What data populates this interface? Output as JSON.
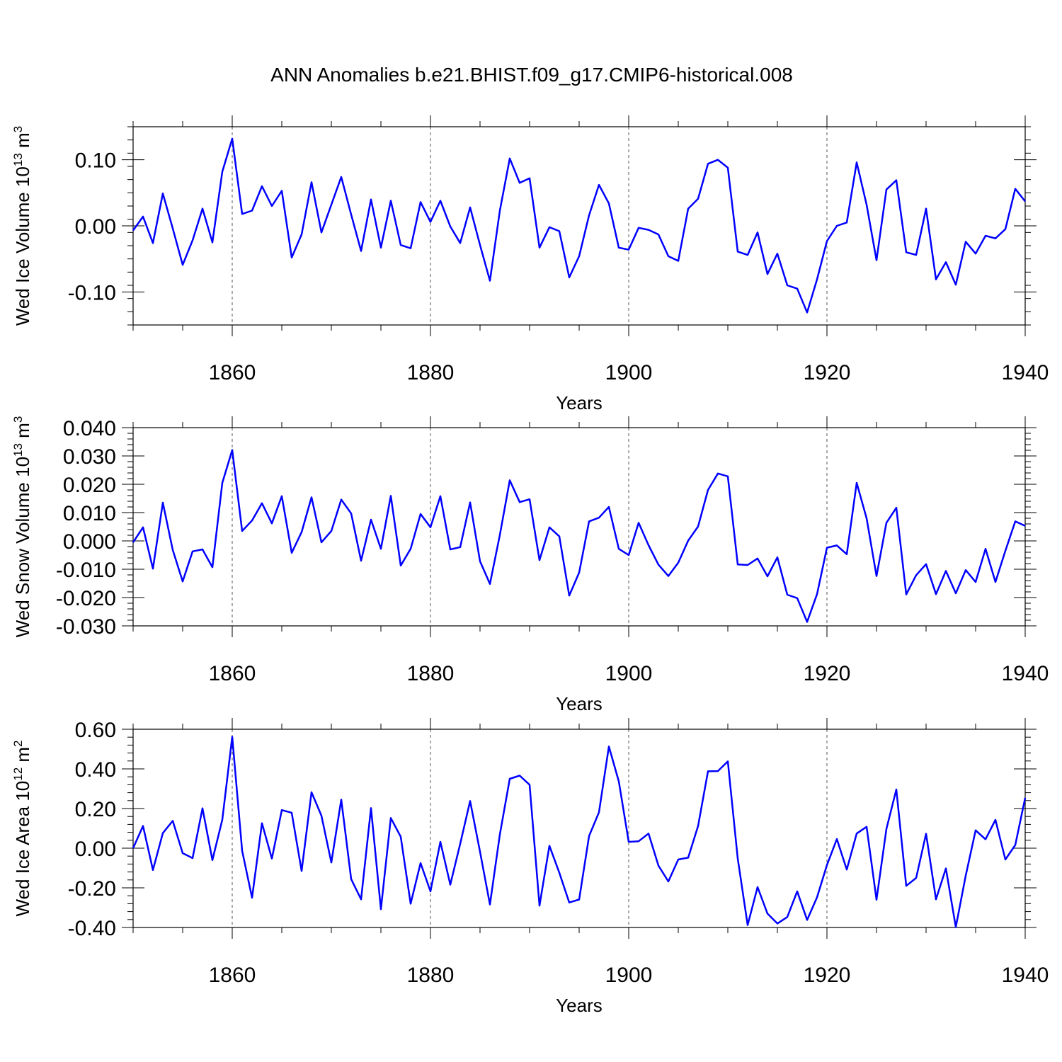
{
  "title": "ANN Anomalies b.e21.BHIST.f09_g17.CMIP6-historical.008",
  "colors": {
    "line": "#0000ff",
    "frame": "#000000",
    "grid": "#555555"
  },
  "chart_data": [
    {
      "type": "line",
      "ylabel_main": "Wed Ice Volume 10",
      "ylabel_sup": "13",
      "ylabel_unit": " m",
      "ylabel_unit_sup": "3",
      "xlabel": "Years",
      "xlim": [
        1850,
        1940
      ],
      "ylim": [
        -0.15,
        0.15
      ],
      "yticks": [
        -0.1,
        0.0,
        0.1
      ],
      "ytick_labels": [
        "-0.10",
        "0.00",
        "0.10"
      ],
      "yminor": 0.02,
      "xticks": [
        1860,
        1880,
        1900,
        1920,
        1940
      ],
      "xtick_labels": [
        "1860",
        "1880",
        "1900",
        "1920",
        "1940"
      ],
      "grid_x": true,
      "x": [
        1850,
        1851,
        1852,
        1853,
        1854,
        1855,
        1856,
        1857,
        1858,
        1859,
        1860,
        1861,
        1862,
        1863,
        1864,
        1865,
        1866,
        1867,
        1868,
        1869,
        1870,
        1871,
        1872,
        1873,
        1874,
        1875,
        1876,
        1877,
        1878,
        1879,
        1880,
        1881,
        1882,
        1883,
        1884,
        1885,
        1886,
        1887,
        1888,
        1889,
        1890,
        1891,
        1892,
        1893,
        1894,
        1895,
        1896,
        1897,
        1898,
        1899,
        1900,
        1901,
        1902,
        1903,
        1904,
        1905,
        1906,
        1907,
        1908,
        1909,
        1910,
        1911,
        1912,
        1913,
        1914,
        1915,
        1916,
        1917,
        1918,
        1919,
        1920,
        1921,
        1922,
        1923,
        1924,
        1925,
        1926,
        1927,
        1928,
        1929,
        1930,
        1931,
        1932,
        1933,
        1934,
        1935,
        1936,
        1937,
        1938,
        1939,
        1940
      ],
      "values": [
        -0.007,
        0.014,
        -0.026,
        0.049,
        -0.004,
        -0.059,
        -0.022,
        0.026,
        -0.025,
        0.082,
        0.132,
        0.018,
        0.023,
        0.06,
        0.03,
        0.053,
        -0.048,
        -0.013,
        0.066,
        -0.01,
        0.032,
        0.074,
        0.017,
        -0.038,
        0.04,
        -0.033,
        0.038,
        -0.029,
        -0.034,
        0.036,
        0.006,
        0.038,
        -0.001,
        -0.026,
        0.028,
        -0.029,
        -0.083,
        0.023,
        0.102,
        0.065,
        0.072,
        -0.033,
        -0.002,
        -0.008,
        -0.078,
        -0.046,
        0.016,
        0.062,
        0.034,
        -0.033,
        -0.036,
        -0.003,
        -0.006,
        -0.013,
        -0.046,
        -0.053,
        0.026,
        0.041,
        0.094,
        0.1,
        0.088,
        -0.039,
        -0.044,
        -0.01,
        -0.073,
        -0.042,
        -0.09,
        -0.095,
        -0.131,
        -0.081,
        -0.023,
        0.0,
        0.005,
        0.096,
        0.032,
        -0.052,
        0.055,
        0.069,
        -0.04,
        -0.044,
        0.026,
        -0.081,
        -0.055,
        -0.089,
        -0.024,
        -0.042,
        -0.015,
        -0.019,
        -0.005,
        0.056,
        0.037
      ]
    },
    {
      "type": "line",
      "ylabel_main": "Wed Snow Volume 10",
      "ylabel_sup": "13",
      "ylabel_unit": " m",
      "ylabel_unit_sup": "3",
      "xlabel": "Years",
      "xlim": [
        1850,
        1940
      ],
      "ylim": [
        -0.03,
        0.04
      ],
      "yticks": [
        -0.03,
        -0.02,
        -0.01,
        0.0,
        0.01,
        0.02,
        0.03,
        0.04
      ],
      "ytick_labels": [
        "-0.030",
        "-0.020",
        "-0.010",
        "0.000",
        "0.010",
        "0.020",
        "0.030",
        "0.040"
      ],
      "yminor": 0.002,
      "xticks": [
        1860,
        1880,
        1900,
        1920,
        1940
      ],
      "xtick_labels": [
        "1860",
        "1880",
        "1900",
        "1920",
        "1940"
      ],
      "grid_x": true,
      "x": [
        1850,
        1851,
        1852,
        1853,
        1854,
        1855,
        1856,
        1857,
        1858,
        1859,
        1860,
        1861,
        1862,
        1863,
        1864,
        1865,
        1866,
        1867,
        1868,
        1869,
        1870,
        1871,
        1872,
        1873,
        1874,
        1875,
        1876,
        1877,
        1878,
        1879,
        1880,
        1881,
        1882,
        1883,
        1884,
        1885,
        1886,
        1887,
        1888,
        1889,
        1890,
        1891,
        1892,
        1893,
        1894,
        1895,
        1896,
        1897,
        1898,
        1899,
        1900,
        1901,
        1902,
        1903,
        1904,
        1905,
        1906,
        1907,
        1908,
        1909,
        1910,
        1911,
        1912,
        1913,
        1914,
        1915,
        1916,
        1917,
        1918,
        1919,
        1920,
        1921,
        1922,
        1923,
        1924,
        1925,
        1926,
        1927,
        1928,
        1929,
        1930,
        1931,
        1932,
        1933,
        1934,
        1935,
        1936,
        1937,
        1938,
        1939,
        1940
      ],
      "values": [
        -0.0005,
        0.0048,
        -0.0098,
        0.0135,
        -0.0032,
        -0.0143,
        -0.0037,
        -0.003,
        -0.0093,
        0.0205,
        0.0321,
        0.0035,
        0.0072,
        0.0133,
        0.0062,
        0.0158,
        -0.0042,
        0.0031,
        0.0154,
        -0.0005,
        0.0035,
        0.0146,
        0.0097,
        -0.007,
        0.0075,
        -0.0028,
        0.0159,
        -0.0087,
        -0.0028,
        0.0095,
        0.0048,
        0.0158,
        -0.003,
        -0.0022,
        0.0136,
        -0.0072,
        -0.0152,
        0.0021,
        0.0214,
        0.0137,
        0.0147,
        -0.0068,
        0.0048,
        0.0016,
        -0.0193,
        -0.0112,
        0.0069,
        0.0082,
        0.012,
        -0.0028,
        -0.005,
        0.0064,
        -0.0015,
        -0.0084,
        -0.0124,
        -0.0077,
        0.0001,
        0.0051,
        0.018,
        0.0238,
        0.0228,
        -0.0083,
        -0.0085,
        -0.0062,
        -0.0125,
        -0.0058,
        -0.019,
        -0.0202,
        -0.0286,
        -0.0188,
        -0.0024,
        -0.0016,
        -0.0047,
        0.0205,
        0.008,
        -0.0124,
        0.0064,
        0.0117,
        -0.0189,
        -0.0121,
        -0.0082,
        -0.0188,
        -0.0106,
        -0.0185,
        -0.0103,
        -0.0145,
        -0.0028,
        -0.0145,
        -0.0035,
        0.0069,
        0.0053
      ]
    },
    {
      "type": "line",
      "ylabel_main": "Wed Ice Area 10",
      "ylabel_sup": "12",
      "ylabel_unit": " m",
      "ylabel_unit_sup": "2",
      "xlabel": "Years",
      "xlim": [
        1850,
        1940
      ],
      "ylim": [
        -0.4,
        0.6
      ],
      "yticks": [
        -0.4,
        -0.2,
        0.0,
        0.2,
        0.4,
        0.6
      ],
      "ytick_labels": [
        "-0.40",
        "-0.20",
        "0.00",
        "0.20",
        "0.40",
        "0.60"
      ],
      "yminor": 0.04,
      "xticks": [
        1860,
        1880,
        1900,
        1920,
        1940
      ],
      "xtick_labels": [
        "1860",
        "1880",
        "1900",
        "1920",
        "1940"
      ],
      "grid_x": true,
      "x": [
        1850,
        1851,
        1852,
        1853,
        1854,
        1855,
        1856,
        1857,
        1858,
        1859,
        1860,
        1861,
        1862,
        1863,
        1864,
        1865,
        1866,
        1867,
        1868,
        1869,
        1870,
        1871,
        1872,
        1873,
        1874,
        1875,
        1876,
        1877,
        1878,
        1879,
        1880,
        1881,
        1882,
        1883,
        1884,
        1885,
        1886,
        1887,
        1888,
        1889,
        1890,
        1891,
        1892,
        1893,
        1894,
        1895,
        1896,
        1897,
        1898,
        1899,
        1900,
        1901,
        1902,
        1903,
        1904,
        1905,
        1906,
        1907,
        1908,
        1909,
        1910,
        1911,
        1912,
        1913,
        1914,
        1915,
        1916,
        1917,
        1918,
        1919,
        1920,
        1921,
        1922,
        1923,
        1924,
        1925,
        1926,
        1927,
        1928,
        1929,
        1930,
        1931,
        1932,
        1933,
        1934,
        1935,
        1936,
        1937,
        1938,
        1939,
        1940
      ],
      "values": [
        0.0,
        0.112,
        -0.11,
        0.076,
        0.138,
        -0.025,
        -0.05,
        0.201,
        -0.06,
        0.144,
        0.562,
        -0.013,
        -0.25,
        0.126,
        -0.052,
        0.192,
        0.179,
        -0.115,
        0.282,
        0.164,
        -0.072,
        0.245,
        -0.156,
        -0.258,
        0.202,
        -0.308,
        0.152,
        0.058,
        -0.28,
        -0.075,
        -0.218,
        0.032,
        -0.184,
        0.022,
        0.238,
        -0.018,
        -0.284,
        0.069,
        0.35,
        0.366,
        0.32,
        -0.29,
        0.012,
        -0.124,
        -0.274,
        -0.259,
        0.061,
        0.181,
        0.513,
        0.337,
        0.032,
        0.035,
        0.074,
        -0.088,
        -0.168,
        -0.057,
        -0.048,
        0.112,
        0.388,
        0.389,
        0.438,
        -0.052,
        -0.388,
        -0.196,
        -0.33,
        -0.38,
        -0.347,
        -0.218,
        -0.362,
        -0.248,
        -0.085,
        0.046,
        -0.108,
        0.074,
        0.108,
        -0.26,
        0.097,
        0.296,
        -0.19,
        -0.15,
        0.073,
        -0.258,
        -0.102,
        -0.398,
        -0.139,
        0.09,
        0.045,
        0.143,
        -0.057,
        0.016,
        0.254
      ]
    }
  ]
}
